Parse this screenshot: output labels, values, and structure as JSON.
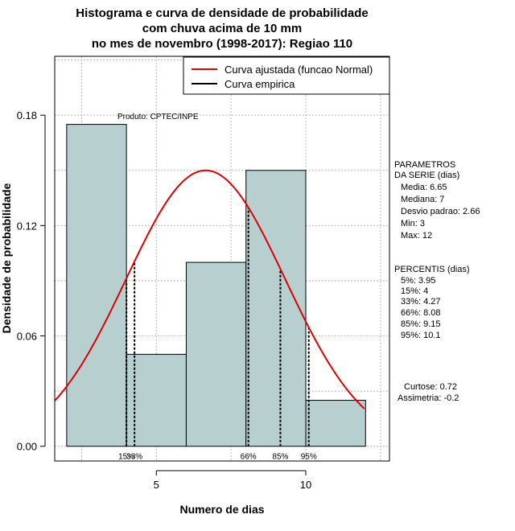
{
  "chart_data": {
    "type": "bar",
    "title_lines": [
      "Histograma e curva de densidade de probabilidade",
      "com chuva acima de 10 mm",
      "no mes de novembro (1998-2017): Regiao 110"
    ],
    "xlabel": "Numero de dias",
    "ylabel": "Densidade de probabilidade",
    "xlim": [
      1.6,
      12.8
    ],
    "ylim": [
      -0.008,
      0.212
    ],
    "x_ticks": [
      5,
      10
    ],
    "y_ticks": [
      0.0,
      0.06,
      0.12,
      0.18
    ],
    "y_tick_labels": [
      "0.00",
      "0.06",
      "0.12",
      "0.18"
    ],
    "grid": true,
    "bins": [
      {
        "x0": 2,
        "x1": 4,
        "value": 0.175
      },
      {
        "x0": 4,
        "x1": 6,
        "value": 0.05
      },
      {
        "x0": 6,
        "x1": 8,
        "value": 0.1
      },
      {
        "x0": 8,
        "x1": 10,
        "value": 0.15
      },
      {
        "x0": 10,
        "x1": 12,
        "value": 0.025
      }
    ],
    "bar_color": "#b7cfcf",
    "fitted_curve": {
      "name": "Curva ajustada (funcao Normal)",
      "mean": 6.65,
      "sd": 2.66,
      "color": "#dd0000"
    },
    "empirical_curve": {
      "name": "Curva empirica",
      "color": "#000000"
    },
    "percentile_lines": [
      {
        "label": "15%",
        "x": 4.0
      },
      {
        "label": "33%",
        "x": 4.27
      },
      {
        "label": "66%",
        "x": 8.08
      },
      {
        "label": "85%",
        "x": 9.15
      },
      {
        "label": "95%",
        "x": 10.1
      }
    ],
    "legend_position": "top-right",
    "annotation": "Produto: CPTEC/INPE",
    "parametros": {
      "heading": [
        "PARAMETROS",
        "DA SERIE (dias)"
      ],
      "lines": [
        "Media: 6.65",
        "Mediana: 7",
        "Desvio padrao: 2.66",
        "Min: 3",
        "Max: 12"
      ]
    },
    "percentis": {
      "heading": "PERCENTIS (dias)",
      "lines": [
        "5%: 3.95",
        "15%: 4",
        "33%: 4.27",
        "66%: 8.08",
        "85%: 9.15",
        "95%: 10.1"
      ]
    },
    "curtose": "Curtose: 0.72",
    "assimetria": "Assimetria: -0.2"
  }
}
